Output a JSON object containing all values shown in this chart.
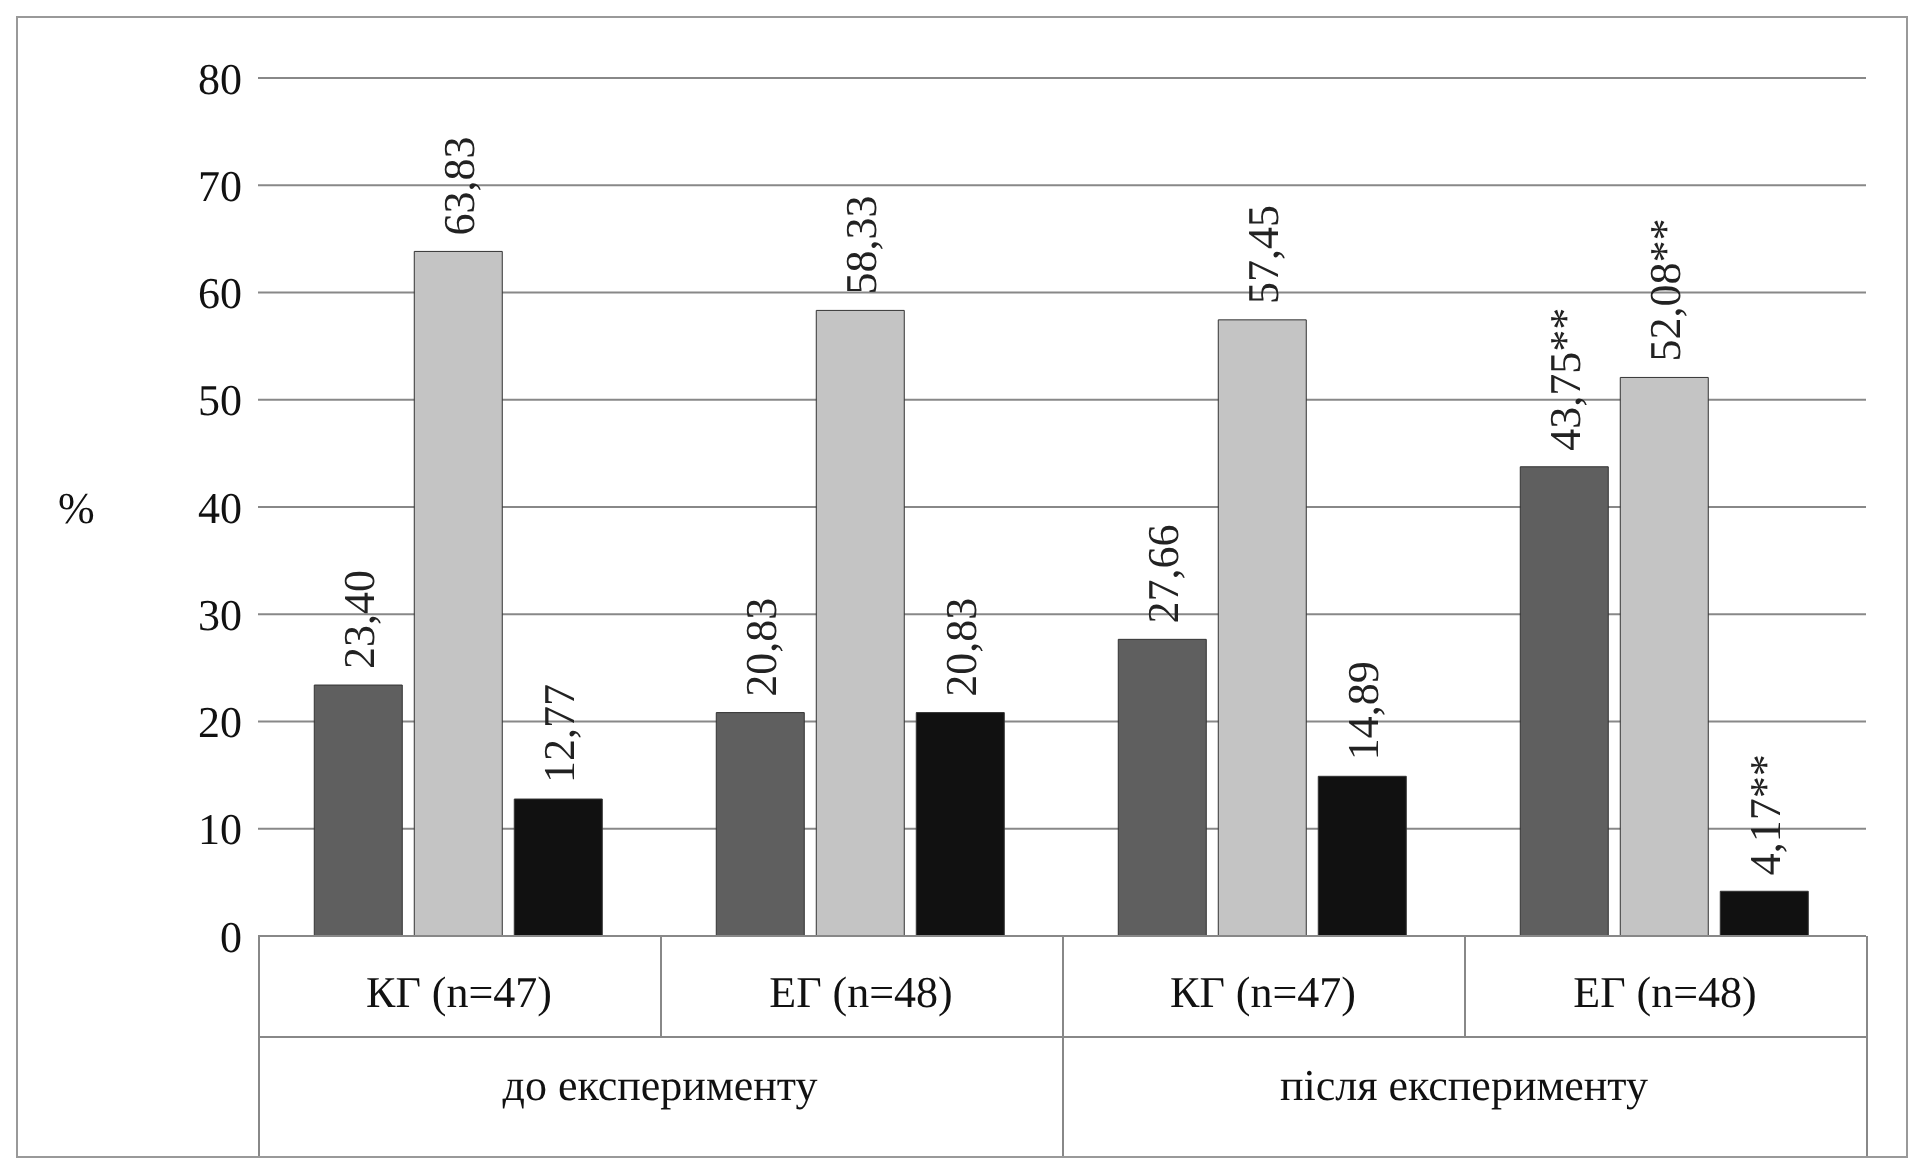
{
  "chart_data": {
    "type": "bar",
    "ylabel": "%",
    "categories": [
      "КГ (n=47)",
      "ЕГ (n=48)",
      "КГ (n=47)",
      "ЕГ (n=48)"
    ],
    "series": [
      {
        "color": "#5f5f5f",
        "values": [
          23.4,
          20.83,
          27.66,
          43.75
        ],
        "value_labels": [
          "23,40",
          "20,83",
          "27,66",
          "43,75**"
        ]
      },
      {
        "color": "#c4c4c4",
        "values": [
          63.83,
          58.33,
          57.45,
          52.08
        ],
        "value_labels": [
          "63,83",
          "58,33",
          "57,45",
          "52,08**"
        ]
      },
      {
        "color": "#111111",
        "values": [
          12.77,
          20.83,
          14.89,
          4.17
        ],
        "value_labels": [
          "12,77",
          "20,83",
          "14,89",
          "4,17**"
        ]
      }
    ],
    "annotations": [
      "до експерименту",
      "після експерименту"
    ],
    "ylim": [
      0,
      80
    ],
    "yticks": [
      0,
      10,
      20,
      30,
      40,
      50,
      60,
      70,
      80
    ],
    "grid": "y",
    "legend": false
  }
}
